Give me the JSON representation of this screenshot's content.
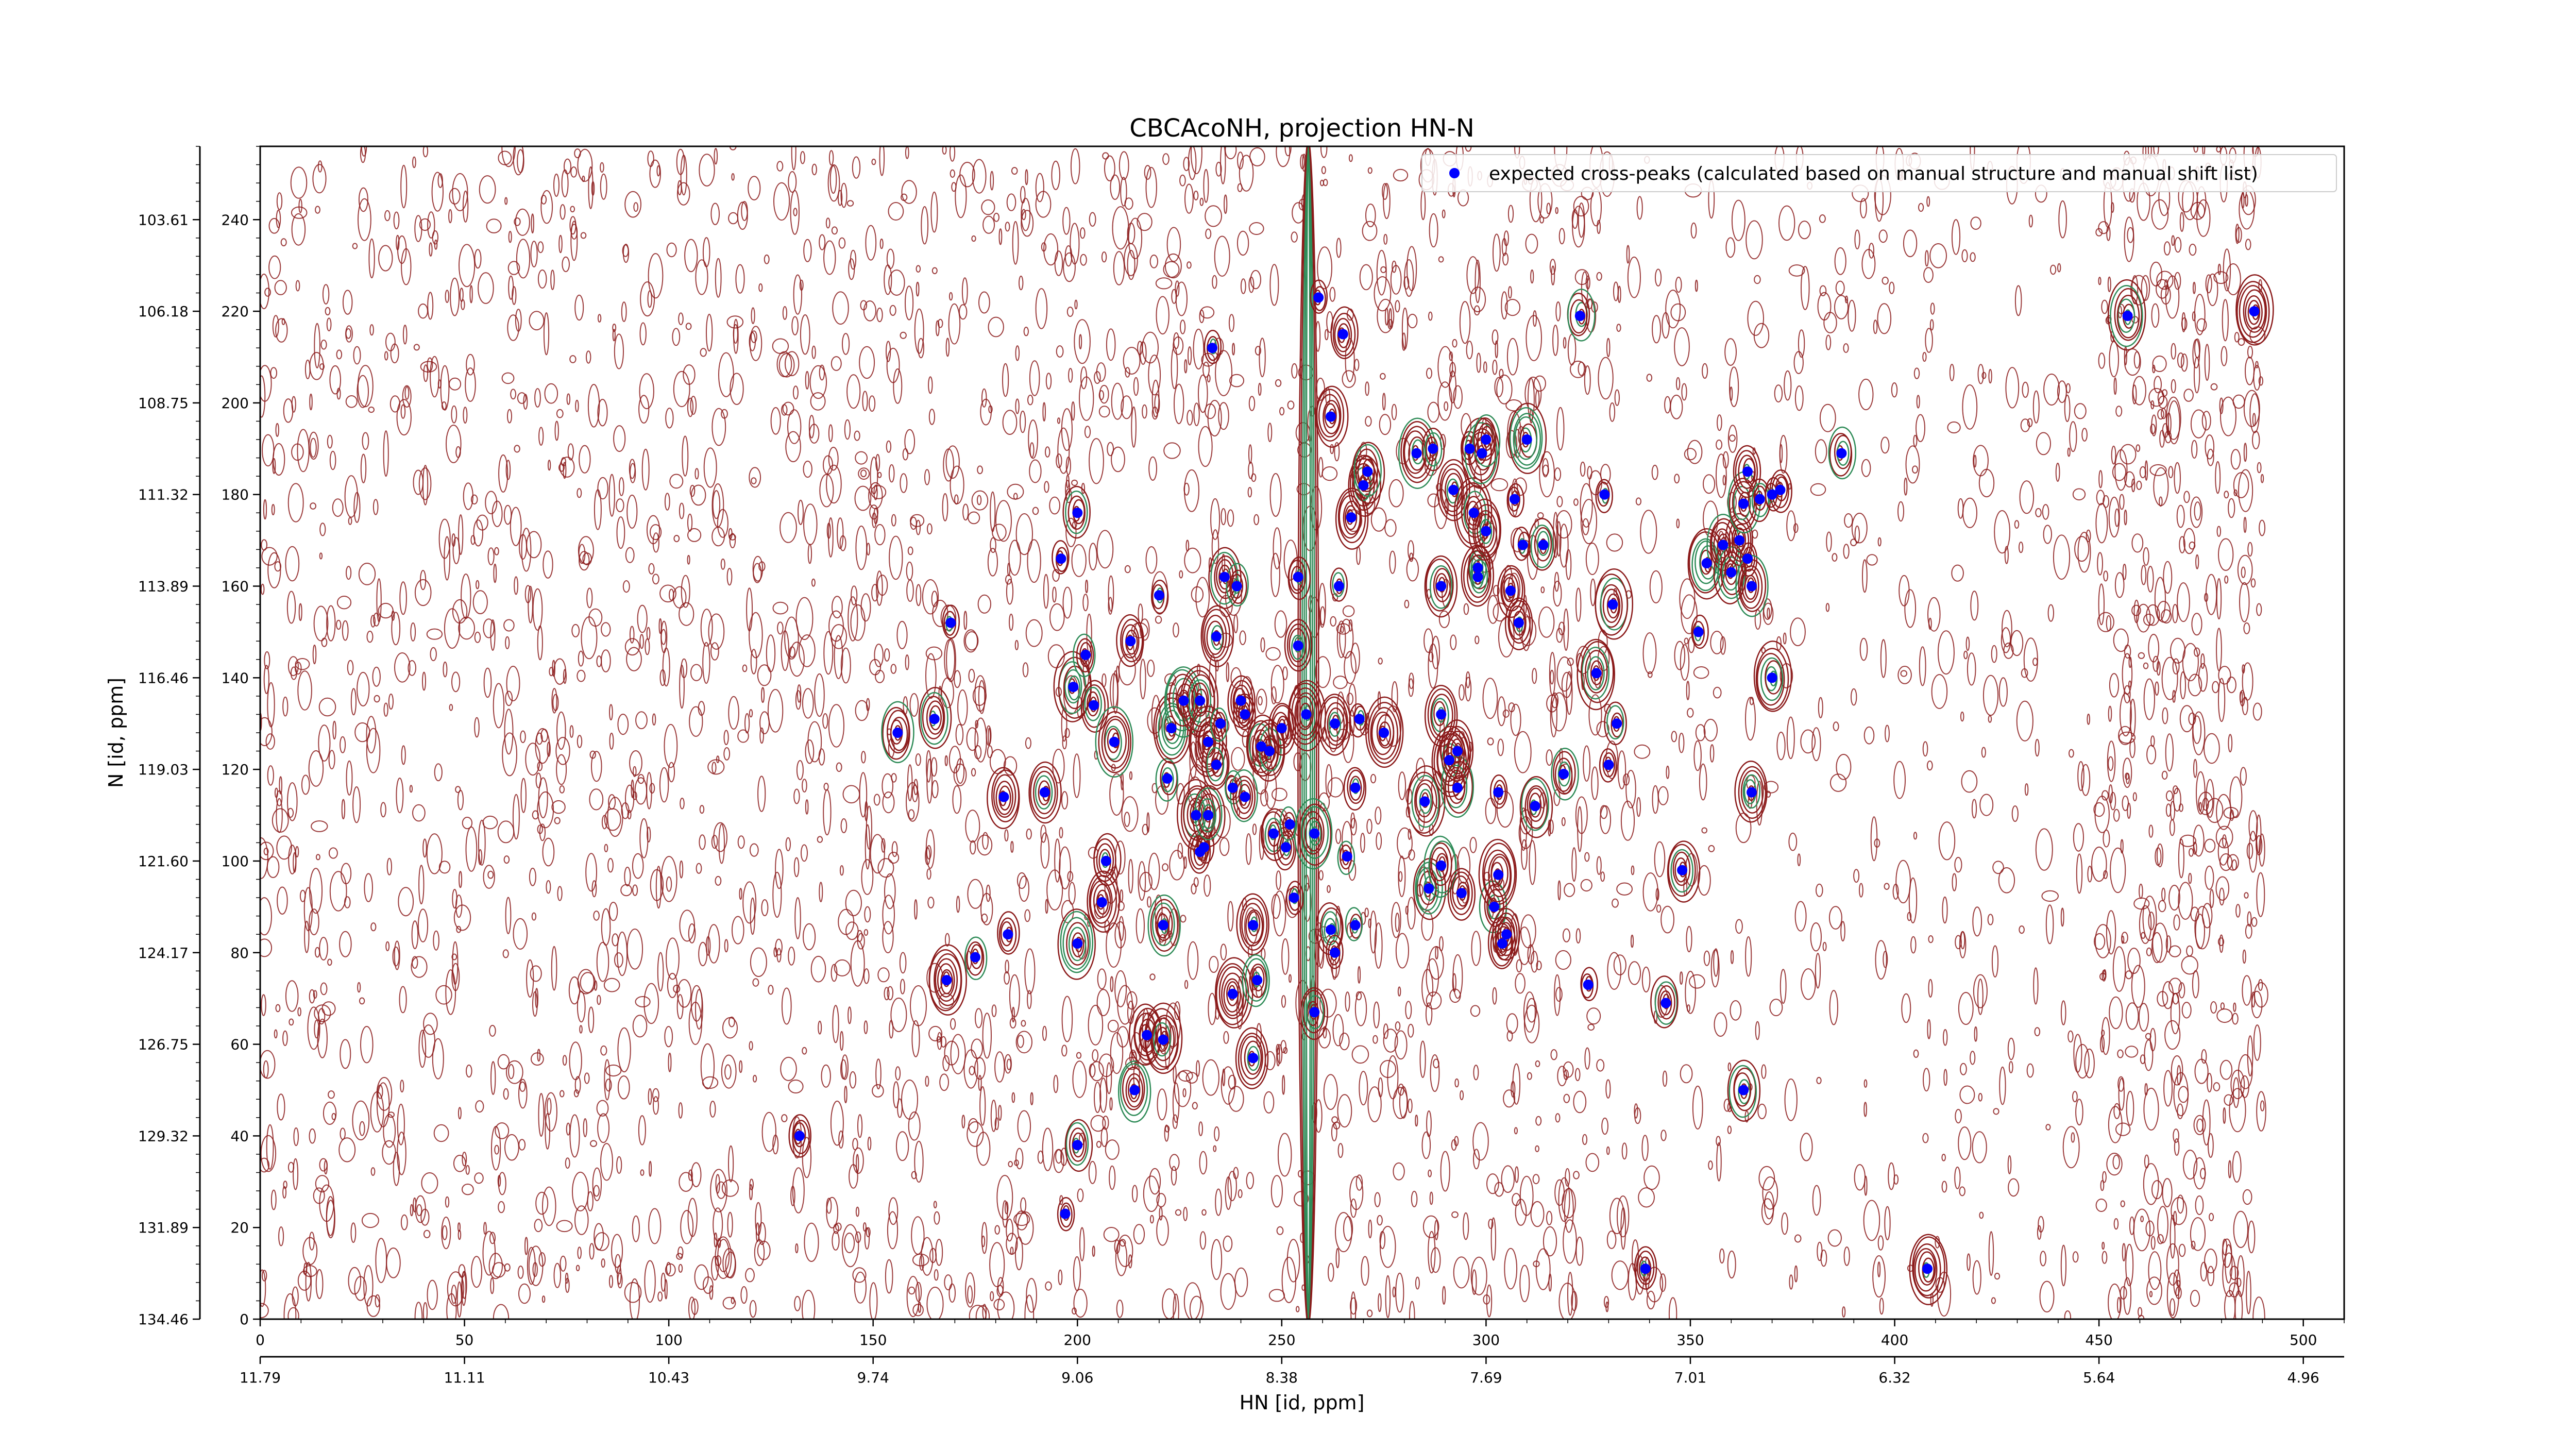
{
  "chart_data": {
    "type": "scatter",
    "title": "CBCAcoNH, projection HN-N",
    "xlabel": "HN [id, ppm]",
    "ylabel": "N [id, ppm]",
    "x_index": {
      "range": [
        0,
        510
      ],
      "ticks": [
        "0",
        "50",
        "100",
        "150",
        "200",
        "250",
        "300",
        "350",
        "400",
        "450",
        "500"
      ]
    },
    "x_ppm": {
      "ticks": [
        "11.79",
        "11.11",
        "10.43",
        "9.74",
        "9.06",
        "8.38",
        "7.69",
        "7.01",
        "6.32",
        "5.64",
        "4.96"
      ]
    },
    "y_index": {
      "range": [
        0,
        256
      ],
      "ticks": [
        "0",
        "20",
        "40",
        "60",
        "80",
        "100",
        "120",
        "140",
        "160",
        "180",
        "200",
        "220",
        "240"
      ]
    },
    "y_ppm": {
      "ticks": [
        "134.46",
        "131.89",
        "129.32",
        "126.75",
        "124.17",
        "121.60",
        "119.03",
        "116.46",
        "113.89",
        "111.32",
        "108.75",
        "106.18",
        "103.61"
      ]
    },
    "legend": {
      "label": "expected cross-peaks (calculated based on manual structure and manual shift list)",
      "position": "top-right"
    },
    "colors": {
      "expected": "#0000ff",
      "contour_positive": "#8b1a1a",
      "contour_negative": "#2e8b57"
    },
    "series": [
      {
        "name": "expected cross-peaks (calculated based on manual structure and manual shift list)",
        "points": [
          [
            132,
            40
          ],
          [
            156,
            128
          ],
          [
            165,
            131
          ],
          [
            168,
            74
          ],
          [
            169,
            152
          ],
          [
            175,
            79
          ],
          [
            182,
            114
          ],
          [
            183,
            84
          ],
          [
            192,
            115
          ],
          [
            196,
            166
          ],
          [
            197,
            23
          ],
          [
            199,
            138
          ],
          [
            200,
            82
          ],
          [
            200,
            38
          ],
          [
            200,
            176
          ],
          [
            202,
            145
          ],
          [
            204,
            134
          ],
          [
            206,
            91
          ],
          [
            207,
            100
          ],
          [
            209,
            126
          ],
          [
            213,
            148
          ],
          [
            214,
            50
          ],
          [
            217,
            62
          ],
          [
            220,
            158
          ],
          [
            221,
            61
          ],
          [
            221,
            86
          ],
          [
            222,
            118
          ],
          [
            223,
            129
          ],
          [
            226,
            135
          ],
          [
            229,
            110
          ],
          [
            230,
            135
          ],
          [
            230,
            102
          ],
          [
            231,
            103
          ],
          [
            232,
            126
          ],
          [
            232,
            110
          ],
          [
            233,
            212
          ],
          [
            234,
            121
          ],
          [
            234,
            149
          ],
          [
            235,
            130
          ],
          [
            236,
            162
          ],
          [
            238,
            116
          ],
          [
            238,
            71
          ],
          [
            239,
            160
          ],
          [
            240,
            135
          ],
          [
            241,
            114
          ],
          [
            241,
            132
          ],
          [
            243,
            86
          ],
          [
            243,
            57
          ],
          [
            244,
            74
          ],
          [
            245,
            125
          ],
          [
            247,
            124
          ],
          [
            248,
            106
          ],
          [
            250,
            129
          ],
          [
            251,
            103
          ],
          [
            252,
            108
          ],
          [
            253,
            92
          ],
          [
            254,
            162
          ],
          [
            254,
            147
          ],
          [
            256,
            132
          ],
          [
            258,
            106
          ],
          [
            258,
            67
          ],
          [
            259,
            223
          ],
          [
            262,
            85
          ],
          [
            262,
            197
          ],
          [
            263,
            130
          ],
          [
            263,
            80
          ],
          [
            264,
            160
          ],
          [
            265,
            215
          ],
          [
            266,
            101
          ],
          [
            267,
            175
          ],
          [
            268,
            86
          ],
          [
            268,
            116
          ],
          [
            269,
            131
          ],
          [
            270,
            182
          ],
          [
            271,
            185
          ],
          [
            275,
            128
          ],
          [
            283,
            189
          ],
          [
            285,
            113
          ],
          [
            286,
            94
          ],
          [
            287,
            190
          ],
          [
            289,
            99
          ],
          [
            289,
            132
          ],
          [
            289,
            160
          ],
          [
            291,
            122
          ],
          [
            292,
            181
          ],
          [
            293,
            116
          ],
          [
            293,
            124
          ],
          [
            294,
            93
          ],
          [
            296,
            190
          ],
          [
            297,
            176
          ],
          [
            298,
            164
          ],
          [
            298,
            162
          ],
          [
            299,
            189
          ],
          [
            300,
            192
          ],
          [
            300,
            172
          ],
          [
            302,
            90
          ],
          [
            303,
            97
          ],
          [
            303,
            115
          ],
          [
            304,
            82
          ],
          [
            305,
            84
          ],
          [
            306,
            159
          ],
          [
            307,
            179
          ],
          [
            308,
            152
          ],
          [
            309,
            169
          ],
          [
            310,
            192
          ],
          [
            312,
            112
          ],
          [
            314,
            169
          ],
          [
            319,
            119
          ],
          [
            323,
            219
          ],
          [
            325,
            73
          ],
          [
            327,
            141
          ],
          [
            329,
            180
          ],
          [
            330,
            121
          ],
          [
            331,
            156
          ],
          [
            332,
            130
          ],
          [
            348,
            98
          ],
          [
            344,
            69
          ],
          [
            352,
            150
          ],
          [
            354,
            165
          ],
          [
            358,
            169
          ],
          [
            360,
            163
          ],
          [
            362,
            170
          ],
          [
            363,
            178
          ],
          [
            363,
            50
          ],
          [
            364,
            166
          ],
          [
            364,
            185
          ],
          [
            365,
            115
          ],
          [
            365,
            160
          ],
          [
            367,
            179
          ],
          [
            370,
            140
          ],
          [
            370,
            180
          ],
          [
            372,
            181
          ],
          [
            387,
            189
          ],
          [
            457,
            219
          ],
          [
            488,
            220
          ],
          [
            339,
            11
          ],
          [
            408,
            11
          ]
        ]
      }
    ]
  }
}
